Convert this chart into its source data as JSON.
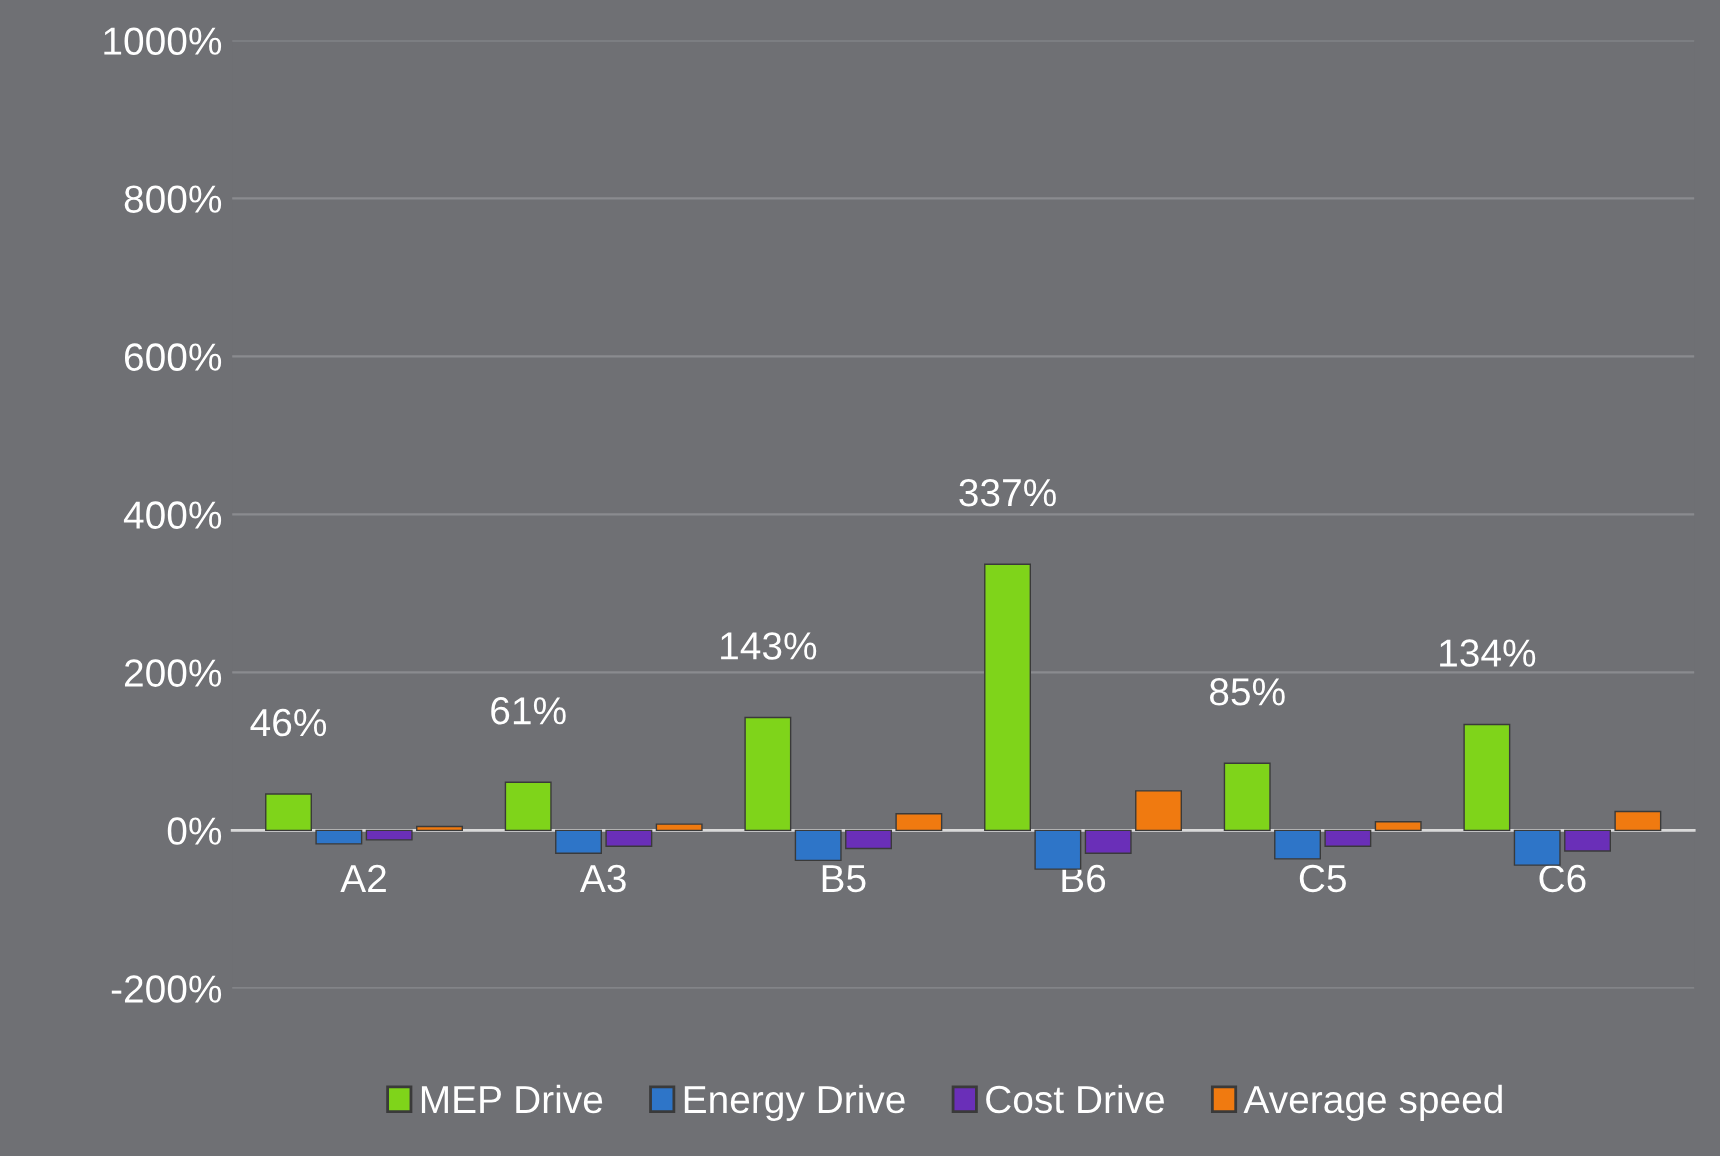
{
  "chart_data": {
    "type": "bar",
    "categories": [
      "A2",
      "A3",
      "B5",
      "B6",
      "C5",
      "C6"
    ],
    "series": [
      {
        "name": "MEP Drive",
        "color": "#7fd41a",
        "values": [
          46,
          61,
          143,
          337,
          85,
          134
        ],
        "value_labels": [
          "46%",
          "61%",
          "143%",
          "337%",
          "85%",
          "134%"
        ]
      },
      {
        "name": "Energy Drive",
        "color": "#2e75c8",
        "values": [
          -17,
          -29,
          -38,
          -49,
          -36,
          -44
        ]
      },
      {
        "name": "Cost Drive",
        "color": "#6a2fb8",
        "values": [
          -12,
          -20,
          -23,
          -29,
          -20,
          -26
        ]
      },
      {
        "name": "Average speed",
        "color": "#f07a10",
        "values": [
          5,
          8,
          21,
          50,
          11,
          24
        ]
      }
    ],
    "ylim": [
      -200,
      1000
    ],
    "yticks": [
      {
        "value": -200,
        "label": "-200%"
      },
      {
        "value": 0,
        "label": "0%"
      },
      {
        "value": 200,
        "label": "200%"
      },
      {
        "value": 400,
        "label": "400%"
      },
      {
        "value": 600,
        "label": "600%"
      },
      {
        "value": 800,
        "label": "800%"
      },
      {
        "value": 1000,
        "label": "1000%"
      }
    ],
    "grid": "y",
    "legend": "bottom"
  }
}
